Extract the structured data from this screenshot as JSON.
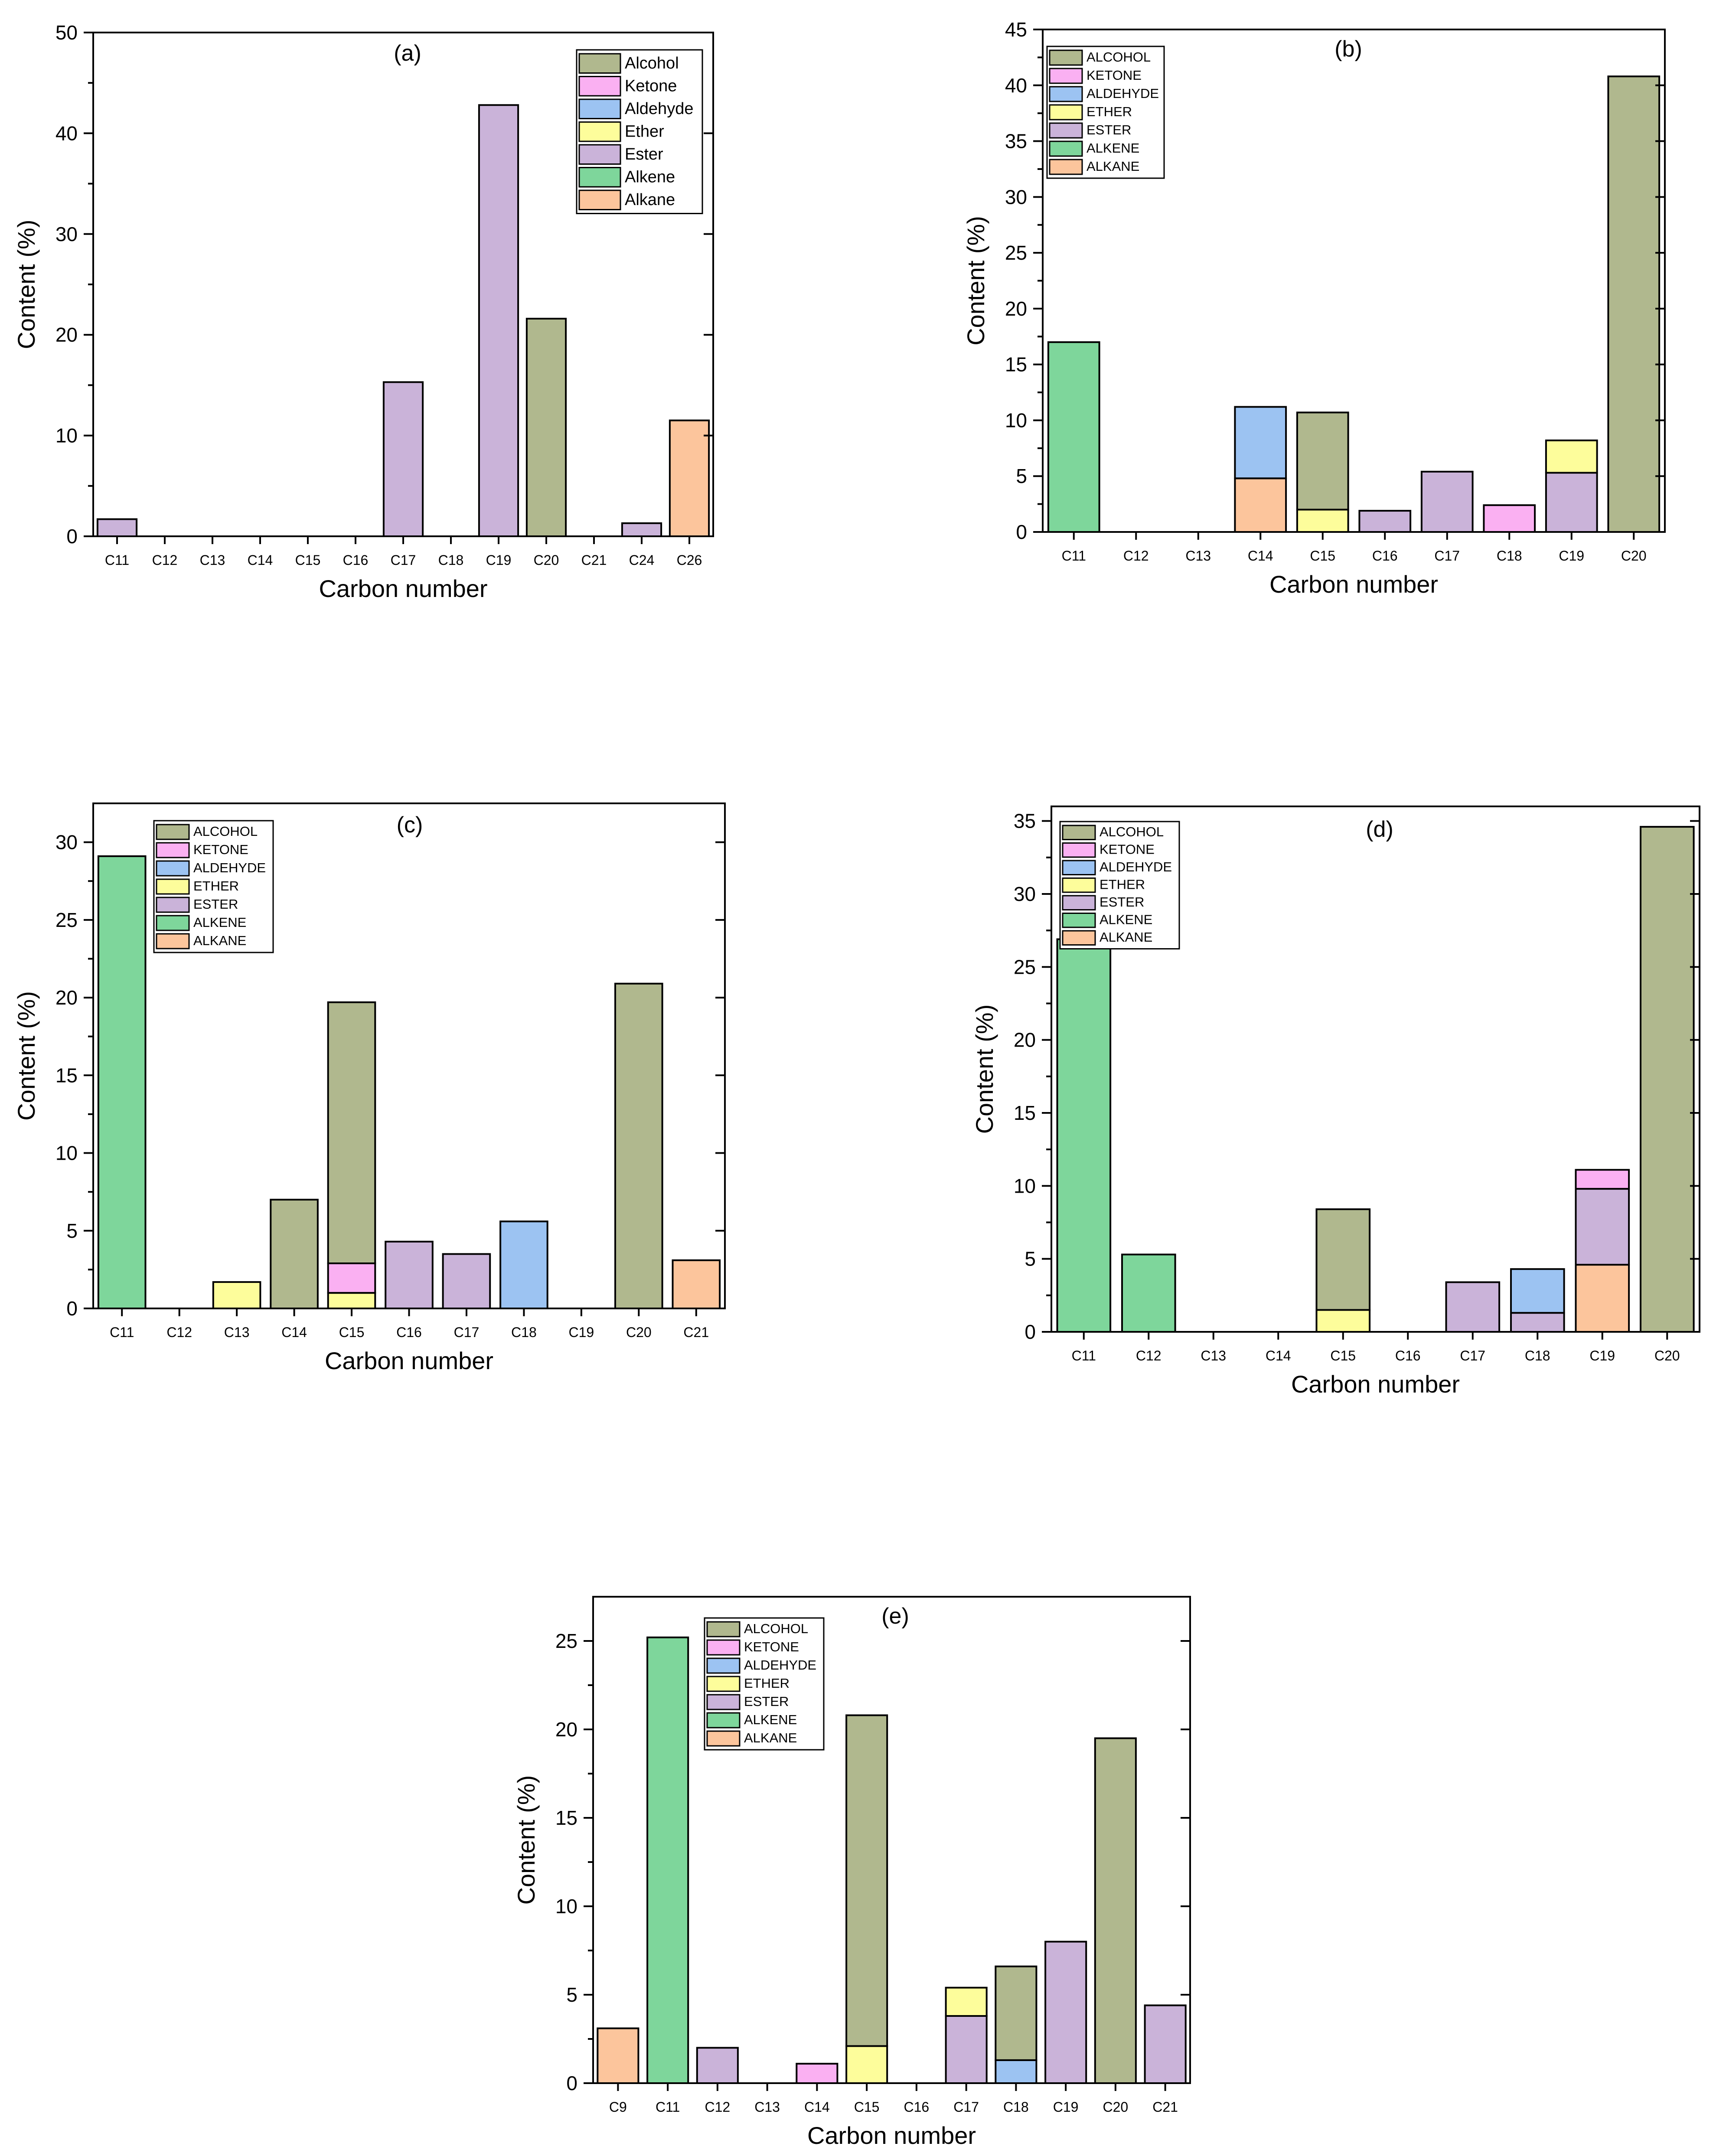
{
  "colors": {
    "alcohol": "#b0b88e",
    "ketone": "#fab0f2",
    "aldehyde": "#9cc3f2",
    "ether": "#fdfd9b",
    "ester": "#cab3d9",
    "alkene": "#7ed69b",
    "alkane": "#fcc59c"
  },
  "chart_data": [
    {
      "type": "bar",
      "stacked": true,
      "panel_label": "(a)",
      "xlabel": "Carbon number",
      "ylabel": "Content (%)",
      "ylim": [
        0,
        50
      ],
      "yticks": [
        0,
        10,
        20,
        30,
        40,
        50
      ],
      "legend_placement": "top-right",
      "legend_labels": [
        "Alcohol",
        "Ketone",
        "Aldehyde",
        "Ether",
        "Ester",
        "Alkene",
        "Alkane"
      ],
      "categories": [
        "C11",
        "C12",
        "C13",
        "C14",
        "C15",
        "C16",
        "C17",
        "C18",
        "C19",
        "C20",
        "C21",
        "C24",
        "C26"
      ],
      "series": [
        {
          "name": "Alkane",
          "key": "alkane",
          "values": [
            0,
            0,
            0,
            0,
            0,
            0,
            0,
            0,
            0,
            0,
            0,
            0,
            11.5
          ]
        },
        {
          "name": "Alkene",
          "key": "alkene",
          "values": [
            0,
            0,
            0,
            0,
            0,
            0,
            0,
            0,
            0,
            0,
            0,
            0,
            0
          ]
        },
        {
          "name": "Aldehyde",
          "key": "aldehyde",
          "values": [
            0,
            0,
            0,
            0,
            0,
            0,
            0,
            0,
            0,
            0,
            0,
            0,
            0
          ]
        },
        {
          "name": "Ether",
          "key": "ether",
          "values": [
            0,
            0,
            0,
            0,
            0,
            0,
            0,
            0,
            0,
            0,
            0,
            0,
            0
          ]
        },
        {
          "name": "Ester",
          "key": "ester",
          "values": [
            1.7,
            0,
            0,
            0,
            0,
            0,
            15.3,
            0,
            42.8,
            0,
            0,
            1.3,
            0
          ]
        },
        {
          "name": "Ketone",
          "key": "ketone",
          "values": [
            0,
            0,
            0,
            0,
            0,
            0,
            0,
            0,
            0,
            0,
            0,
            0,
            0
          ]
        },
        {
          "name": "Alcohol",
          "key": "alcohol",
          "values": [
            0,
            0,
            0,
            0,
            0,
            0,
            0,
            0,
            0,
            21.6,
            0,
            0,
            0
          ]
        }
      ]
    },
    {
      "type": "bar",
      "stacked": true,
      "panel_label": "(b)",
      "xlabel": "Carbon number",
      "ylabel": "Content (%)",
      "ylim": [
        0,
        45
      ],
      "yticks": [
        0,
        5,
        10,
        15,
        20,
        25,
        30,
        35,
        40,
        45
      ],
      "legend_placement": "top-left",
      "legend_labels": [
        "ALCOHOL",
        "KETONE",
        "ALDEHYDE",
        "ETHER",
        "ESTER",
        "ALKENE",
        "ALKANE"
      ],
      "categories": [
        "C11",
        "C12",
        "C13",
        "C14",
        "C15",
        "C16",
        "C17",
        "C18",
        "C19",
        "C20"
      ],
      "series": [
        {
          "name": "ALKANE",
          "key": "alkane",
          "values": [
            0,
            0,
            0,
            4.8,
            0,
            0,
            0,
            0,
            0,
            0
          ]
        },
        {
          "name": "ALKENE",
          "key": "alkene",
          "values": [
            17.0,
            0,
            0,
            0,
            0,
            0,
            0,
            0,
            0,
            0
          ]
        },
        {
          "name": "ALDEHYDE",
          "key": "aldehyde",
          "values": [
            0,
            0,
            0,
            6.4,
            0,
            0,
            0,
            0,
            0,
            0
          ]
        },
        {
          "name": "ETHER",
          "key": "ether",
          "values": [
            0,
            0,
            0,
            0,
            2.0,
            0,
            0,
            0,
            0,
            0
          ]
        },
        {
          "name": "ESTER",
          "key": "ester",
          "values": [
            0,
            0,
            0,
            0,
            0,
            1.9,
            5.4,
            0,
            5.3,
            0
          ]
        },
        {
          "name": "ETHER",
          "key": "ether",
          "values": [
            0,
            0,
            0,
            0,
            0,
            0,
            0,
            0,
            2.9,
            0
          ]
        },
        {
          "name": "KETONE",
          "key": "ketone",
          "values": [
            0,
            0,
            0,
            0,
            0,
            0,
            0,
            2.4,
            0,
            0
          ]
        },
        {
          "name": "ALCOHOL",
          "key": "alcohol",
          "values": [
            0,
            0,
            0,
            0,
            8.7,
            0,
            0,
            0,
            0,
            40.8
          ]
        }
      ]
    },
    {
      "type": "bar",
      "stacked": true,
      "panel_label": "(c)",
      "xlabel": "Carbon number",
      "ylabel": "Content (%)",
      "ylim": [
        0,
        32.5
      ],
      "yticks": [
        0,
        5,
        10,
        15,
        20,
        25,
        30
      ],
      "legend_placement": "top-left",
      "legend_labels": [
        "ALCOHOL",
        "KETONE",
        "ALDEHYDE",
        "ETHER",
        "ESTER",
        "ALKENE",
        "ALKANE"
      ],
      "categories": [
        "C11",
        "C12",
        "C13",
        "C14",
        "C15",
        "C16",
        "C17",
        "C18",
        "C19",
        "C20",
        "C21"
      ],
      "series": [
        {
          "name": "ALKANE",
          "key": "alkane",
          "values": [
            0,
            0,
            0,
            0,
            0,
            0,
            0,
            0,
            0,
            0,
            3.1
          ]
        },
        {
          "name": "ALKENE",
          "key": "alkene",
          "values": [
            29.1,
            0,
            0,
            0,
            0,
            0,
            0,
            0,
            0,
            0,
            0
          ]
        },
        {
          "name": "ALDEHYDE",
          "key": "aldehyde",
          "values": [
            0,
            0,
            0,
            0,
            0,
            0,
            0,
            5.6,
            0,
            0,
            0
          ]
        },
        {
          "name": "ETHER",
          "key": "ether",
          "values": [
            0,
            0,
            1.7,
            0,
            1.0,
            0,
            0,
            0,
            0,
            0,
            0
          ]
        },
        {
          "name": "ESTER",
          "key": "ester",
          "values": [
            0,
            0,
            0,
            0,
            0,
            4.3,
            3.5,
            0,
            0,
            0,
            0
          ]
        },
        {
          "name": "KETONE",
          "key": "ketone",
          "values": [
            0,
            0,
            0,
            0,
            1.9,
            0,
            0,
            0,
            0,
            0,
            0
          ]
        },
        {
          "name": "ALCOHOL",
          "key": "alcohol",
          "values": [
            0,
            0,
            0,
            7.0,
            16.8,
            0,
            0,
            0,
            0,
            20.9,
            0
          ]
        }
      ]
    },
    {
      "type": "bar",
      "stacked": true,
      "panel_label": "(d)",
      "xlabel": "Carbon number",
      "ylabel": "Content (%)",
      "ylim": [
        0,
        36
      ],
      "yticks": [
        0,
        5,
        10,
        15,
        20,
        25,
        30,
        35
      ],
      "legend_placement": "top-left",
      "legend_labels": [
        "ALCOHOL",
        "KETONE",
        "ALDEHYDE",
        "ETHER",
        "ESTER",
        "ALKENE",
        "ALKANE"
      ],
      "categories": [
        "C11",
        "C12",
        "C13",
        "C14",
        "C15",
        "C16",
        "C17",
        "C18",
        "C19",
        "C20"
      ],
      "series": [
        {
          "name": "ALKANE",
          "key": "alkane",
          "values": [
            0,
            0,
            0,
            0,
            0,
            0,
            0,
            0,
            4.6,
            0
          ]
        },
        {
          "name": "ALKENE",
          "key": "alkene",
          "values": [
            26.9,
            5.3,
            0,
            0,
            0,
            0,
            0,
            0,
            0,
            0
          ]
        },
        {
          "name": "ETHER",
          "key": "ether",
          "values": [
            0,
            0,
            0,
            0,
            1.5,
            0,
            0,
            0,
            0,
            0
          ]
        },
        {
          "name": "ESTER",
          "key": "ester",
          "values": [
            0,
            0,
            0,
            0,
            0,
            0,
            3.4,
            1.3,
            5.2,
            0
          ]
        },
        {
          "name": "ALDEHYDE",
          "key": "aldehyde",
          "values": [
            0,
            0,
            0,
            0,
            0,
            0,
            0,
            3.0,
            0,
            0
          ]
        },
        {
          "name": "KETONE",
          "key": "ketone",
          "values": [
            0,
            0,
            0,
            0,
            0,
            0,
            0,
            0,
            1.3,
            0
          ]
        },
        {
          "name": "ALCOHOL",
          "key": "alcohol",
          "values": [
            0,
            0,
            0,
            0,
            6.9,
            0,
            0,
            0,
            0,
            34.6
          ]
        }
      ]
    },
    {
      "type": "bar",
      "stacked": true,
      "panel_label": "(e)",
      "xlabel": "Carbon number",
      "ylabel": "Content (%)",
      "ylim": [
        0,
        27.5
      ],
      "yticks": [
        0,
        5,
        10,
        15,
        20,
        25
      ],
      "legend_placement": "top-left",
      "legend_labels": [
        "ALCOHOL",
        "KETONE",
        "ALDEHYDE",
        "ETHER",
        "ESTER",
        "ALKENE",
        "ALKANE"
      ],
      "categories": [
        "C9",
        "C11",
        "C12",
        "C13",
        "C14",
        "C15",
        "C16",
        "C17",
        "C18",
        "C19",
        "C20",
        "C21"
      ],
      "series": [
        {
          "name": "ALKANE",
          "key": "alkane",
          "values": [
            3.1,
            0,
            0,
            0,
            0,
            0,
            0,
            0,
            0,
            0,
            0,
            0
          ]
        },
        {
          "name": "ALKENE",
          "key": "alkene",
          "values": [
            0,
            25.2,
            0,
            0,
            0,
            0,
            0,
            0,
            0,
            0,
            0,
            0
          ]
        },
        {
          "name": "ALDEHYDE",
          "key": "aldehyde",
          "values": [
            0,
            0,
            0,
            0,
            0,
            0,
            0,
            0,
            1.3,
            0,
            0,
            0
          ]
        },
        {
          "name": "ETHER",
          "key": "ether",
          "values": [
            0,
            0,
            0,
            0,
            0,
            2.1,
            0,
            0,
            0,
            0,
            0,
            0
          ]
        },
        {
          "name": "ESTER",
          "key": "ester",
          "values": [
            0,
            0,
            2.0,
            0,
            0,
            0,
            0,
            3.8,
            0,
            8.0,
            0,
            4.4
          ]
        },
        {
          "name": "ETHER",
          "key": "ether",
          "values": [
            0,
            0,
            0,
            0,
            0,
            0,
            0,
            1.6,
            0,
            0,
            0,
            0
          ]
        },
        {
          "name": "KETONE",
          "key": "ketone",
          "values": [
            0,
            0,
            0,
            0,
            1.1,
            0,
            0,
            0,
            0,
            0,
            0,
            0
          ]
        },
        {
          "name": "ALCOHOL",
          "key": "alcohol",
          "values": [
            0,
            0,
            0,
            0,
            0,
            18.7,
            0,
            0,
            5.3,
            0,
            19.5,
            0
          ]
        }
      ]
    }
  ]
}
